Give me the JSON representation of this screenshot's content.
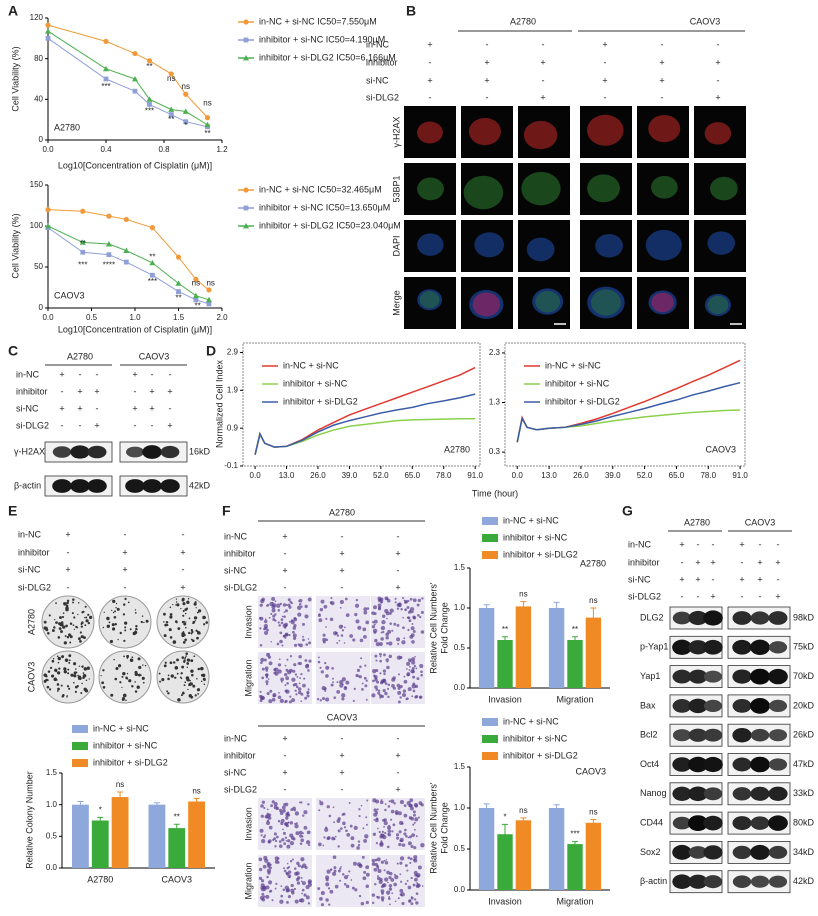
{
  "panel_letters": [
    "A",
    "B",
    "C",
    "D",
    "E",
    "F",
    "G"
  ],
  "chart_data": [
    {
      "type": "line",
      "label": "A2780",
      "xlabel": "Log10[Concentration of Cisplatin (μM)]",
      "ylabel": "Cell Viability (%)",
      "x": [
        0,
        0.4,
        0.6,
        0.7,
        0.85,
        0.95,
        1.1
      ],
      "series": [
        {
          "name": "in-NC + si-NC IC50=7.550μM",
          "color": "#f29a3a",
          "marker": "circle",
          "values": [
            113,
            97,
            85,
            78,
            65,
            45,
            22
          ]
        },
        {
          "name": "inhibitor + si-NC IC50=4.190μM",
          "color": "#8f9fd8",
          "marker": "square",
          "values": [
            100,
            60,
            48,
            35,
            25,
            18,
            13
          ]
        },
        {
          "name": "inhibitor + si-DLG2 IC50=6.166μM",
          "color": "#4caf50",
          "marker": "triangle",
          "values": [
            107,
            70,
            60,
            40,
            30,
            28,
            15
          ]
        }
      ],
      "xlim": [
        0,
        1.2
      ],
      "xticks": [
        {
          "value": 0,
          "label": "0.0"
        },
        0.4,
        0.8,
        1.2
      ],
      "ylim": [
        0,
        120
      ],
      "yticks": [
        0,
        40,
        80,
        120
      ],
      "annotations": [
        {
          "text": "***",
          "x": 0.4,
          "y": 52
        },
        {
          "text": "**",
          "x": 0.7,
          "y": 72
        },
        {
          "text": "***",
          "x": 0.7,
          "y": 28
        },
        {
          "text": "ns",
          "x": 0.85,
          "y": 60
        },
        {
          "text": "**",
          "x": 0.85,
          "y": 20
        },
        {
          "text": "ns",
          "x": 0.95,
          "y": 52
        },
        {
          "text": "*",
          "x": 0.95,
          "y": 14
        },
        {
          "text": "ns",
          "x": 1.1,
          "y": 36
        },
        {
          "text": "**",
          "x": 1.1,
          "y": 6
        }
      ]
    },
    {
      "type": "line",
      "label": "CAOV3",
      "xlabel": "Log10[Concentration of Cisplatin (μM)]",
      "ylabel": "Cell Viability (%)",
      "x": [
        0,
        0.4,
        0.7,
        0.9,
        1.2,
        1.5,
        1.7,
        1.85
      ],
      "series": [
        {
          "name": "in-NC + si-NC IC50=32.465μM",
          "color": "#f29a3a",
          "marker": "circle",
          "values": [
            120,
            118,
            112,
            108,
            98,
            62,
            35,
            22
          ]
        },
        {
          "name": "inhibitor + si-NC IC50=13.650μM",
          "color": "#8f9fd8",
          "marker": "square",
          "values": [
            98,
            68,
            65,
            56,
            40,
            20,
            10,
            5
          ]
        },
        {
          "name": "inhibitor + si-DLG2 IC50=23.040μM",
          "color": "#4caf50",
          "marker": "triangle",
          "values": [
            100,
            80,
            78,
            70,
            55,
            30,
            15,
            10
          ]
        }
      ],
      "xlim": [
        0,
        2
      ],
      "xticks": [
        {
          "value": 0,
          "label": "0.0"
        },
        {
          "value": 0.5,
          "label": "0.5"
        },
        {
          "value": 1,
          "label": "1.0"
        },
        {
          "value": 1.5,
          "label": "1.5"
        },
        {
          "value": 2,
          "label": "2.0"
        }
      ],
      "ylim": [
        0,
        150
      ],
      "yticks": [
        0,
        50,
        100,
        150
      ],
      "annotations": [
        {
          "text": "**",
          "x": 0.4,
          "y": 78
        },
        {
          "text": "***",
          "x": 0.4,
          "y": 52
        },
        {
          "text": "****",
          "x": 0.7,
          "y": 52
        },
        {
          "text": "**",
          "x": 1.2,
          "y": 62
        },
        {
          "text": "***",
          "x": 1.2,
          "y": 32
        },
        {
          "text": "**",
          "x": 1.5,
          "y": 12
        },
        {
          "text": "ns",
          "x": 1.7,
          "y": 30
        },
        {
          "text": "**",
          "x": 1.72,
          "y": 2
        },
        {
          "text": "ns",
          "x": 1.87,
          "y": 30
        }
      ]
    },
    {
      "type": "line",
      "label": "A2780",
      "xlabel": "Time (hour)",
      "ylabel": "Normalized Cell Index",
      "x": [
        0,
        2,
        4,
        8,
        13,
        19.5,
        26,
        32.5,
        39,
        45.5,
        52,
        58.5,
        65,
        71.5,
        78,
        84.5,
        91
      ],
      "series": [
        {
          "name": "in-NC + si-NC",
          "color": "#e0392f",
          "values": [
            0.2,
            0.75,
            0.5,
            0.4,
            0.42,
            0.6,
            0.85,
            1.05,
            1.25,
            1.4,
            1.55,
            1.7,
            1.85,
            2.0,
            2.15,
            2.3,
            2.5
          ]
        },
        {
          "name": "inhibitor + si-NC",
          "color": "#8bd04a",
          "values": [
            0.2,
            0.72,
            0.5,
            0.4,
            0.42,
            0.55,
            0.72,
            0.85,
            0.95,
            1.0,
            1.05,
            1.1,
            1.12,
            1.13,
            1.14,
            1.15,
            1.15
          ]
        },
        {
          "name": "inhibitor + si-DLG2",
          "color": "#3a5ca8",
          "values": [
            0.2,
            0.75,
            0.5,
            0.4,
            0.42,
            0.58,
            0.8,
            0.98,
            1.1,
            1.2,
            1.3,
            1.38,
            1.45,
            1.55,
            1.62,
            1.7,
            1.8
          ]
        }
      ],
      "xlim": [
        -5,
        93
      ],
      "xticks": [
        {
          "value": 0,
          "label": "0.0"
        },
        {
          "value": 13,
          "label": "13.0"
        },
        {
          "value": 26,
          "label": "26.0"
        },
        {
          "value": 39,
          "label": "39.0"
        },
        {
          "value": 52,
          "label": "52.0"
        },
        {
          "value": 65,
          "label": "65.0"
        },
        {
          "value": 78,
          "label": "78.0"
        },
        {
          "value": 91,
          "label": "91.0"
        }
      ],
      "ylim": [
        -0.1,
        3.15
      ],
      "yticks": [
        -0.1,
        0.9,
        1.9,
        2.9
      ]
    },
    {
      "type": "line",
      "label": "CAOV3",
      "x": [
        0,
        2,
        4,
        8,
        13,
        19.5,
        26,
        32.5,
        39,
        45.5,
        52,
        58.5,
        65,
        71.5,
        78,
        84.5,
        91
      ],
      "series": [
        {
          "name": "in-NC + si-NC",
          "color": "#e0392f",
          "values": [
            0.5,
            1.0,
            0.8,
            0.75,
            0.78,
            0.8,
            0.88,
            0.97,
            1.08,
            1.2,
            1.32,
            1.45,
            1.58,
            1.72,
            1.85,
            2.0,
            2.15
          ]
        },
        {
          "name": "inhibitor + si-NC",
          "color": "#8bd04a",
          "values": [
            0.5,
            0.98,
            0.8,
            0.75,
            0.78,
            0.8,
            0.83,
            0.88,
            0.93,
            0.97,
            1.01,
            1.04,
            1.07,
            1.1,
            1.12,
            1.14,
            1.15
          ]
        },
        {
          "name": "inhibitor + si-DLG2",
          "color": "#3a5ca8",
          "values": [
            0.5,
            0.98,
            0.8,
            0.75,
            0.78,
            0.8,
            0.86,
            0.93,
            1.02,
            1.1,
            1.18,
            1.27,
            1.35,
            1.45,
            1.53,
            1.62,
            1.7
          ]
        }
      ],
      "xlim": [
        -5,
        93
      ],
      "xticks": [
        {
          "value": 0,
          "label": "0.0"
        },
        {
          "value": 13,
          "label": "13.0"
        },
        {
          "value": 26,
          "label": "26.0"
        },
        {
          "value": 39,
          "label": "39.0"
        },
        {
          "value": 52,
          "label": "52.0"
        },
        {
          "value": 65,
          "label": "65.0"
        },
        {
          "value": 78,
          "label": "78.0"
        },
        {
          "value": 91,
          "label": "91.0"
        }
      ],
      "ylim": [
        0.02,
        2.5
      ],
      "yticks": [
        0.3,
        1.3,
        2.3
      ]
    },
    {
      "type": "bar",
      "ylabel": "Relative Colony Number",
      "categories": [
        "A2780",
        "CAOV3"
      ],
      "series": [
        {
          "name": "in-NC + si-NC",
          "color": "#8fa8dc",
          "values": [
            1.0,
            1.0
          ],
          "errors": [
            0.05,
            0.03
          ]
        },
        {
          "name": "inhibitor + si-NC",
          "color": "#3aaa3a",
          "values": [
            0.75,
            0.63
          ],
          "errors": [
            0.05,
            0.06
          ],
          "significance": [
            "*",
            "**"
          ]
        },
        {
          "name": "inhibitor + si-DLG2",
          "color": "#f08a24",
          "values": [
            1.12,
            1.05
          ],
          "errors": [
            0.08,
            0.05
          ],
          "significance": [
            "ns",
            "ns"
          ]
        }
      ],
      "ylim": [
        0,
        1.5
      ],
      "yticks": [
        {
          "value": 0,
          "label": "0.0"
        },
        {
          "value": 0.5,
          "label": "0.5"
        },
        {
          "value": 1,
          "label": "1.0"
        },
        {
          "value": 1.5,
          "label": "1.5"
        }
      ]
    },
    {
      "type": "bar",
      "label": "A2780",
      "ylabel": [
        "Relative Cell Numbers'",
        "Fold Change"
      ],
      "categories": [
        "Invasion",
        "Migration"
      ],
      "series": [
        {
          "name": "in-NC + si-NC",
          "color": "#8fa8dc",
          "values": [
            1.0,
            1.0
          ],
          "errors": [
            0.04,
            0.07
          ]
        },
        {
          "name": "inhibitor + si-NC",
          "color": "#3aaa3a",
          "values": [
            0.6,
            0.6
          ],
          "errors": [
            0.04,
            0.04
          ],
          "significance": [
            "**",
            "**"
          ]
        },
        {
          "name": "inhibitor + si-DLG2",
          "color": "#f08a24",
          "values": [
            1.02,
            0.88
          ],
          "errors": [
            0.06,
            0.12
          ],
          "significance": [
            "ns",
            "ns"
          ]
        }
      ],
      "ylim": [
        0,
        1.5
      ],
      "yticks": [
        {
          "value": 0,
          "label": "0.0"
        },
        {
          "value": 0.5,
          "label": "0.5"
        },
        {
          "value": 1,
          "label": "1.0"
        },
        {
          "value": 1.5,
          "label": "1.5"
        }
      ]
    },
    {
      "type": "bar",
      "label": "CAOV3",
      "ylabel": [
        "Relative Cell Numbers'",
        "Fold Change"
      ],
      "categories": [
        "Invasion",
        "Migration"
      ],
      "series": [
        {
          "name": "in-NC + si-NC",
          "color": "#8fa8dc",
          "values": [
            1.0,
            1.0
          ],
          "errors": [
            0.05,
            0.04
          ]
        },
        {
          "name": "inhibitor + si-NC",
          "color": "#3aaa3a",
          "values": [
            0.68,
            0.56
          ],
          "errors": [
            0.12,
            0.03
          ],
          "significance": [
            "*",
            "***"
          ]
        },
        {
          "name": "inhibitor + si-DLG2",
          "color": "#f08a24",
          "values": [
            0.85,
            0.82
          ],
          "errors": [
            0.03,
            0.04
          ],
          "significance": [
            "ns",
            "ns"
          ]
        }
      ],
      "ylim": [
        0,
        1.5
      ],
      "yticks": [
        {
          "value": 0,
          "label": "0.0"
        },
        {
          "value": 0.5,
          "label": "0.5"
        },
        {
          "value": 1,
          "label": "1.0"
        },
        {
          "value": 1.5,
          "label": "1.5"
        }
      ]
    }
  ],
  "panel_b": {
    "cell_lines": [
      "A2780",
      "CAOV3"
    ],
    "treatments": [
      {
        "label": "in-NC",
        "signs": [
          "+",
          "-",
          "-"
        ]
      },
      {
        "label": "inhibitor",
        "signs": [
          "-",
          "+",
          "+"
        ]
      },
      {
        "label": "si-NC",
        "signs": [
          "+",
          "+",
          "-"
        ]
      },
      {
        "label": "si-DLG2",
        "signs": [
          "-",
          "-",
          "+"
        ]
      }
    ],
    "stains": [
      {
        "label": "γ-H2AX",
        "color": "#e53935"
      },
      {
        "label": "53BP1",
        "color": "#2e9e3e"
      },
      {
        "label": "DAPI",
        "color": "#1e88e5"
      },
      {
        "label": "Merge",
        "color": "#222222"
      }
    ]
  },
  "panel_c": {
    "cell_lines": [
      "A2780",
      "CAOV3"
    ],
    "treatments": [
      {
        "label": "in-NC",
        "signs": [
          "+",
          "-",
          "-"
        ]
      },
      {
        "label": "inhibitor",
        "signs": [
          "-",
          "+",
          "+"
        ]
      },
      {
        "label": "si-NC",
        "signs": [
          "+",
          "+",
          "-"
        ]
      },
      {
        "label": "si-DLG2",
        "signs": [
          "-",
          "-",
          "+"
        ]
      }
    ],
    "proteins": [
      {
        "name": "γ-H2AX",
        "size": "16kD"
      },
      {
        "name": "β-actin",
        "size": "42kD"
      }
    ]
  },
  "panel_e": {
    "treatments": [
      {
        "label": "in-NC",
        "signs": [
          "+",
          "-",
          "-"
        ]
      },
      {
        "label": "inhibitor",
        "signs": [
          "-",
          "+",
          "+"
        ]
      },
      {
        "label": "si-NC",
        "signs": [
          "+",
          "+",
          "-"
        ]
      },
      {
        "label": "si-DLG2",
        "signs": [
          "-",
          "-",
          "+"
        ]
      }
    ],
    "rows": [
      "A2780",
      "CAOV3"
    ]
  },
  "panel_f": {
    "blocks": [
      {
        "cell_line": "A2780",
        "treatments": [
          {
            "label": "in-NC",
            "signs": [
              "+",
              "-",
              "-"
            ]
          },
          {
            "label": "inhibitor",
            "signs": [
              "-",
              "+",
              "+"
            ]
          },
          {
            "label": "si-NC",
            "signs": [
              "+",
              "+",
              "-"
            ]
          },
          {
            "label": "si-DLG2",
            "signs": [
              "-",
              "-",
              "+"
            ]
          }
        ],
        "rows": [
          "Invasion",
          "Migration"
        ]
      },
      {
        "cell_line": "CAOV3",
        "treatments": [
          {
            "label": "in-NC",
            "signs": [
              "+",
              "-",
              "-"
            ]
          },
          {
            "label": "inhibitor",
            "signs": [
              "-",
              "+",
              "+"
            ]
          },
          {
            "label": "si-NC",
            "signs": [
              "+",
              "+",
              "-"
            ]
          },
          {
            "label": "si-DLG2",
            "signs": [
              "-",
              "-",
              "+"
            ]
          }
        ],
        "rows": [
          "Invasion",
          "Migration"
        ]
      }
    ]
  },
  "panel_g": {
    "cell_lines": [
      "A2780",
      "CAOV3"
    ],
    "treatments": [
      {
        "label": "in-NC",
        "signs": [
          "+",
          "-",
          "-"
        ]
      },
      {
        "label": "inhibitor",
        "signs": [
          "-",
          "+",
          "+"
        ]
      },
      {
        "label": "si-NC",
        "signs": [
          "+",
          "+",
          "-"
        ]
      },
      {
        "label": "si-DLG2",
        "signs": [
          "-",
          "-",
          "+"
        ]
      }
    ],
    "proteins": [
      {
        "name": "DLG2",
        "size": "98kD"
      },
      {
        "name": "p-Yap1",
        "size": "75kD"
      },
      {
        "name": "Yap1",
        "size": "70kD"
      },
      {
        "name": "Bax",
        "size": "20kD"
      },
      {
        "name": "Bcl2",
        "size": "26kD"
      },
      {
        "name": "Oct4",
        "size": "47kD"
      },
      {
        "name": "Nanog",
        "size": "33kD"
      },
      {
        "name": "CD44",
        "size": "80kD"
      },
      {
        "name": "Sox2",
        "size": "34kD"
      },
      {
        "name": "β-actin",
        "size": "42kD"
      }
    ]
  }
}
